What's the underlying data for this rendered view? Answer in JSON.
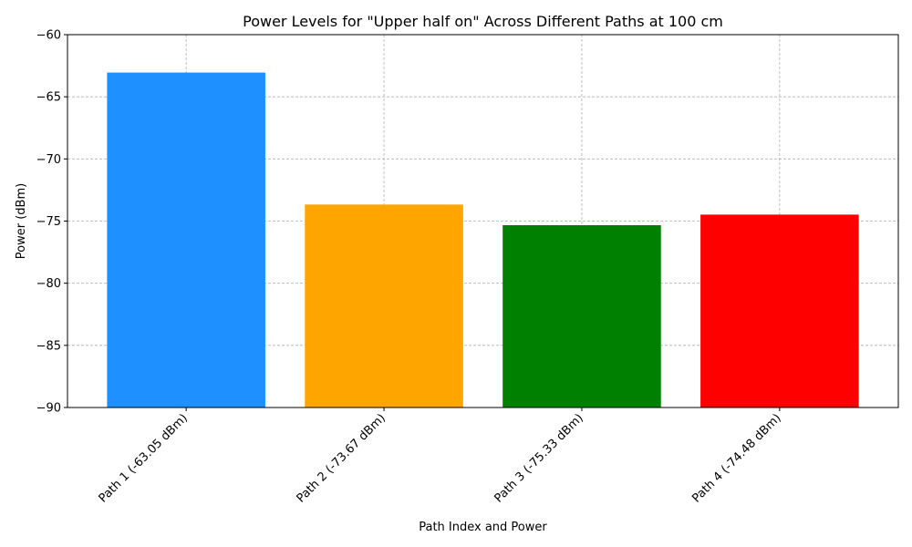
{
  "chart_data": {
    "type": "bar",
    "title": "Power Levels for \"Upper half on\" Across Different Paths at 100 cm",
    "xlabel": "Path Index and Power",
    "ylabel": "Power (dBm)",
    "categories": [
      "Path 1 (-63.05 dBm)",
      "Path 2 (-73.67 dBm)",
      "Path 3 (-75.33 dBm)",
      "Path 4 (-74.48 dBm)"
    ],
    "values": [
      -63.05,
      -73.67,
      -75.33,
      -74.48
    ],
    "colors": [
      "#1e90ff",
      "#ffa500",
      "#008000",
      "#ff0000"
    ],
    "ylim": [
      -90,
      -60
    ],
    "yticks": [
      -90,
      -85,
      -80,
      -75,
      -70,
      -65,
      -60
    ],
    "ytick_labels": [
      "−90",
      "−85",
      "−80",
      "−75",
      "−70",
      "−65",
      "−60"
    ],
    "grid": true,
    "legend": "none"
  }
}
